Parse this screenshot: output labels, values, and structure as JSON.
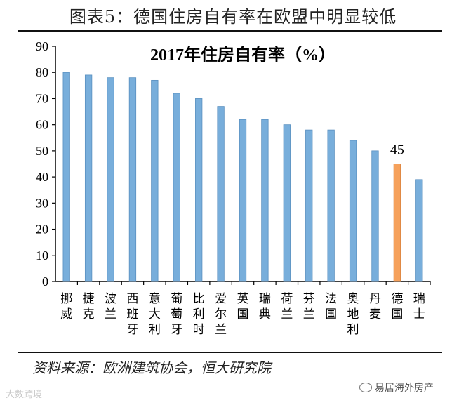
{
  "figure_title": "图表5：德国住房自有率在欧盟中明显较低",
  "source": "资料来源：欧洲建筑协会，恒大研究院",
  "watermark_left": "大数跨境",
  "watermark_right": "易居海外房产",
  "colors": {
    "bar": "#78aedb",
    "highlight": "#f6a15b",
    "axis": "#000000"
  },
  "chart_data": {
    "type": "bar",
    "title": "2017年住房自有率（%）",
    "categories": [
      "挪威",
      "捷克",
      "波兰",
      "西班牙",
      "意大利",
      "葡萄牙",
      "比利时",
      "爱尔兰",
      "英国",
      "瑞典",
      "荷兰",
      "芬兰",
      "法国",
      "奥地利",
      "丹麦",
      "德国",
      "瑞士"
    ],
    "values": [
      80,
      79,
      78,
      78,
      77,
      72,
      70,
      67,
      62,
      62,
      60,
      58,
      58,
      54,
      50,
      45,
      39
    ],
    "highlight": "德国",
    "data_labels": [
      {
        "category": "德国",
        "text": "45"
      }
    ],
    "ylim": [
      0,
      90
    ],
    "yticks": [
      0,
      10,
      20,
      30,
      40,
      50,
      60,
      70,
      80,
      90
    ],
    "xlabel": "",
    "ylabel": "",
    "grid": false,
    "legend": "none"
  }
}
